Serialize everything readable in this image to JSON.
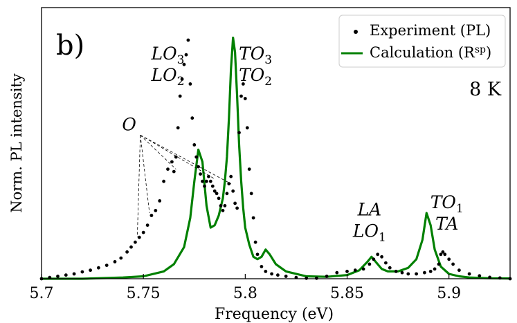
{
  "chart_data": {
    "type": "line",
    "panel_label": "b)",
    "condition_label": "8 K",
    "xlabel": "Frequency (eV)",
    "ylabel": "Norm. PL intensity",
    "xlim": [
      5.7,
      5.93
    ],
    "ylim": [
      0,
      1.0
    ],
    "xticks": [
      5.7,
      5.75,
      5.8,
      5.85,
      5.9
    ],
    "xtick_labels": [
      "5.7",
      "5.75",
      "5.8",
      "5.85",
      "5.9"
    ],
    "legend": {
      "position": "top-right",
      "entries": [
        {
          "label": "Experiment (PL)",
          "marker": "dot",
          "color": "#000000"
        },
        {
          "label": "Calculation (R",
          "superscript": "sp",
          "label_suffix": ")",
          "marker": "line",
          "color": "#008000"
        }
      ]
    },
    "annotations": [
      {
        "lines": [
          {
            "base": "LO",
            "sub": "3"
          },
          {
            "base": "LO",
            "sub": "2"
          }
        ],
        "x": 5.762,
        "y": 0.9
      },
      {
        "lines": [
          {
            "base": "TO",
            "sub": "3"
          },
          {
            "base": "TO",
            "sub": "2"
          }
        ],
        "x": 5.805,
        "y": 0.9
      },
      {
        "lines": [
          {
            "base": "O",
            "sub": ""
          }
        ],
        "x": 5.743,
        "y": 0.61
      },
      {
        "lines": [
          {
            "base": "LA",
            "sub": ""
          },
          {
            "base": "LO",
            "sub": "1"
          }
        ],
        "x": 5.861,
        "y": 0.26
      },
      {
        "lines": [
          {
            "base": "TO",
            "sub": "1"
          },
          {
            "base": "TA",
            "sub": ""
          }
        ],
        "x": 5.899,
        "y": 0.29
      }
    ],
    "o_pointer_targets": [
      {
        "x": 5.747,
        "y": 0.17
      },
      {
        "x": 5.753,
        "y": 0.27
      },
      {
        "x": 5.766,
        "y": 0.45
      },
      {
        "x": 5.785,
        "y": 0.41
      },
      {
        "x": 5.793,
        "y": 0.39
      }
    ],
    "series": [
      {
        "name": "Experiment (PL)",
        "style": "scatter",
        "color": "#000000",
        "x": [
          5.7,
          5.704,
          5.708,
          5.712,
          5.716,
          5.72,
          5.724,
          5.728,
          5.732,
          5.736,
          5.739,
          5.742,
          5.744,
          5.746,
          5.748,
          5.75,
          5.752,
          5.754,
          5.756,
          5.758,
          5.76,
          5.762,
          5.764,
          5.765,
          5.766,
          5.767,
          5.768,
          5.769,
          5.77,
          5.771,
          5.772,
          5.773,
          5.774,
          5.775,
          5.776,
          5.777,
          5.778,
          5.779,
          5.78,
          5.781,
          5.782,
          5.783,
          5.784,
          5.785,
          5.786,
          5.787,
          5.788,
          5.789,
          5.79,
          5.791,
          5.792,
          5.793,
          5.794,
          5.795,
          5.796,
          5.797,
          5.798,
          5.799,
          5.8,
          5.801,
          5.802,
          5.803,
          5.804,
          5.805,
          5.806,
          5.808,
          5.81,
          5.813,
          5.816,
          5.82,
          5.825,
          5.83,
          5.835,
          5.84,
          5.845,
          5.85,
          5.854,
          5.858,
          5.861,
          5.863,
          5.865,
          5.867,
          5.869,
          5.871,
          5.874,
          5.877,
          5.88,
          5.884,
          5.888,
          5.891,
          5.893,
          5.895,
          5.896,
          5.897,
          5.898,
          5.9,
          5.902,
          5.905,
          5.91,
          5.915,
          5.92,
          5.925,
          5.93
        ],
        "y": [
          0.0,
          0.005,
          0.01,
          0.015,
          0.02,
          0.028,
          0.035,
          0.045,
          0.055,
          0.07,
          0.085,
          0.11,
          0.13,
          0.15,
          0.17,
          0.19,
          0.22,
          0.26,
          0.28,
          0.32,
          0.4,
          0.45,
          0.48,
          0.44,
          0.5,
          0.62,
          0.75,
          0.82,
          0.88,
          0.92,
          0.98,
          0.8,
          0.66,
          0.55,
          0.5,
          0.46,
          0.43,
          0.4,
          0.38,
          0.4,
          0.42,
          0.4,
          0.38,
          0.36,
          0.35,
          0.33,
          0.3,
          0.28,
          0.3,
          0.35,
          0.39,
          0.42,
          0.36,
          0.31,
          0.29,
          0.6,
          0.75,
          0.8,
          0.74,
          0.62,
          0.45,
          0.35,
          0.25,
          0.15,
          0.1,
          0.05,
          0.03,
          0.02,
          0.015,
          0.01,
          0.005,
          0.002,
          0.002,
          0.01,
          0.025,
          0.03,
          0.035,
          0.04,
          0.06,
          0.08,
          0.1,
          0.09,
          0.065,
          0.045,
          0.03,
          0.025,
          0.02,
          0.02,
          0.025,
          0.03,
          0.04,
          0.06,
          0.1,
          0.11,
          0.1,
          0.08,
          0.06,
          0.035,
          0.02,
          0.012,
          0.006,
          0.003,
          0.0
        ]
      },
      {
        "name": "Calculation (Rsp)",
        "style": "line",
        "color": "#008000",
        "x": [
          5.7,
          5.72,
          5.74,
          5.75,
          5.76,
          5.765,
          5.77,
          5.773,
          5.775,
          5.777,
          5.779,
          5.781,
          5.783,
          5.785,
          5.787,
          5.789,
          5.79,
          5.791,
          5.792,
          5.793,
          5.794,
          5.795,
          5.796,
          5.797,
          5.798,
          5.799,
          5.8,
          5.802,
          5.804,
          5.806,
          5.808,
          5.81,
          5.812,
          5.815,
          5.82,
          5.83,
          5.84,
          5.85,
          5.856,
          5.86,
          5.862,
          5.864,
          5.867,
          5.87,
          5.875,
          5.88,
          5.884,
          5.887,
          5.889,
          5.891,
          5.893,
          5.896,
          5.9,
          5.905,
          5.91,
          5.92,
          5.93
        ],
        "y": [
          0.0,
          0.0,
          0.005,
          0.01,
          0.03,
          0.06,
          0.13,
          0.25,
          0.4,
          0.53,
          0.48,
          0.3,
          0.21,
          0.22,
          0.26,
          0.33,
          0.4,
          0.5,
          0.66,
          0.86,
          0.99,
          0.93,
          0.75,
          0.55,
          0.4,
          0.29,
          0.21,
          0.14,
          0.09,
          0.08,
          0.09,
          0.12,
          0.1,
          0.06,
          0.03,
          0.01,
          0.008,
          0.015,
          0.035,
          0.07,
          0.09,
          0.07,
          0.04,
          0.03,
          0.03,
          0.045,
          0.08,
          0.16,
          0.27,
          0.22,
          0.12,
          0.05,
          0.02,
          0.01,
          0.005,
          0.002,
          0.001
        ]
      }
    ]
  }
}
